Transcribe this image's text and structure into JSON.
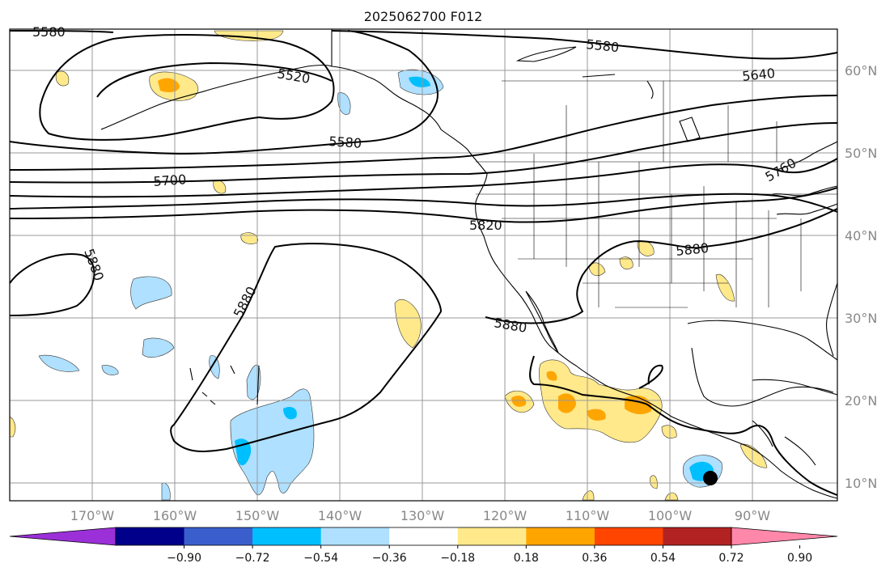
{
  "title": "2025062700 F012",
  "map": {
    "lat_labels": [
      "60°N",
      "50°N",
      "40°N",
      "30°N",
      "20°N",
      "10°N"
    ],
    "lon_labels": [
      "170°W",
      "160°W",
      "150°W",
      "140°W",
      "130°W",
      "120°W",
      "110°W",
      "100°W",
      "90°W"
    ],
    "contour_labels": [
      "5580",
      "5520",
      "5580",
      "5580",
      "5640",
      "5700",
      "5760",
      "5820",
      "5880",
      "5880",
      "5880",
      "5880"
    ],
    "colors": {
      "land": "#000000",
      "grid": "#999999"
    }
  },
  "colorbar": {
    "ticks": [
      "−0.90",
      "−0.72",
      "−0.54",
      "−0.36",
      "−0.18",
      "0.18",
      "0.36",
      "0.54",
      "0.72",
      "0.90"
    ],
    "colors": [
      "#9b30d8",
      "#00008b",
      "#3a5fcd",
      "#00bfff",
      "#afe0ff",
      "#ffffff",
      "#ffe98a",
      "#ffa500",
      "#ff4500",
      "#b22222",
      "#ff88aa"
    ]
  }
}
